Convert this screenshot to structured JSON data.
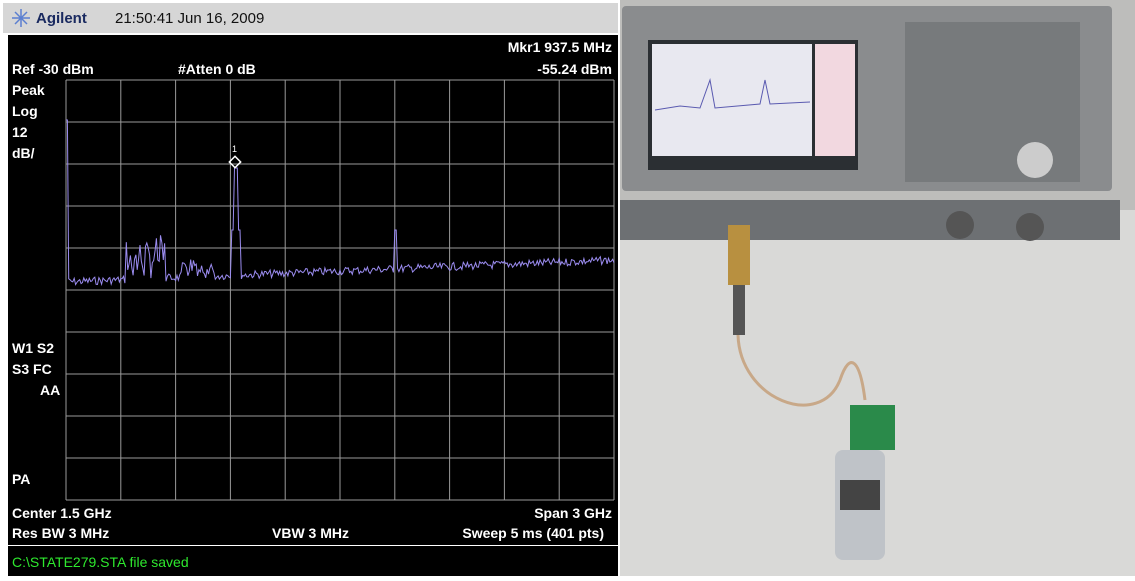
{
  "header": {
    "brand": "Agilent",
    "timestamp": "21:50:41 Jun 16, 2009"
  },
  "screen": {
    "marker": "Mkr1 937.5 MHz",
    "marker_level": "-55.24 dBm",
    "ref_level": "Ref -30 dBm",
    "atten": "#Atten 0 dB",
    "left_labels": [
      "Peak",
      "Log",
      "12",
      "dB/"
    ],
    "mode_labels": [
      "W1 S2",
      "S3 FC",
      "AA"
    ],
    "pa_label": "PA",
    "marker_id": "1",
    "center": "Center 1.5 GHz",
    "span": "Span 3 GHz",
    "res_bw": "Res BW 3 MHz",
    "vbw": "VBW 3 MHz",
    "sweep": "Sweep 5 ms (401 pts)"
  },
  "status": "C:\\STATE279.STA file saved"
}
